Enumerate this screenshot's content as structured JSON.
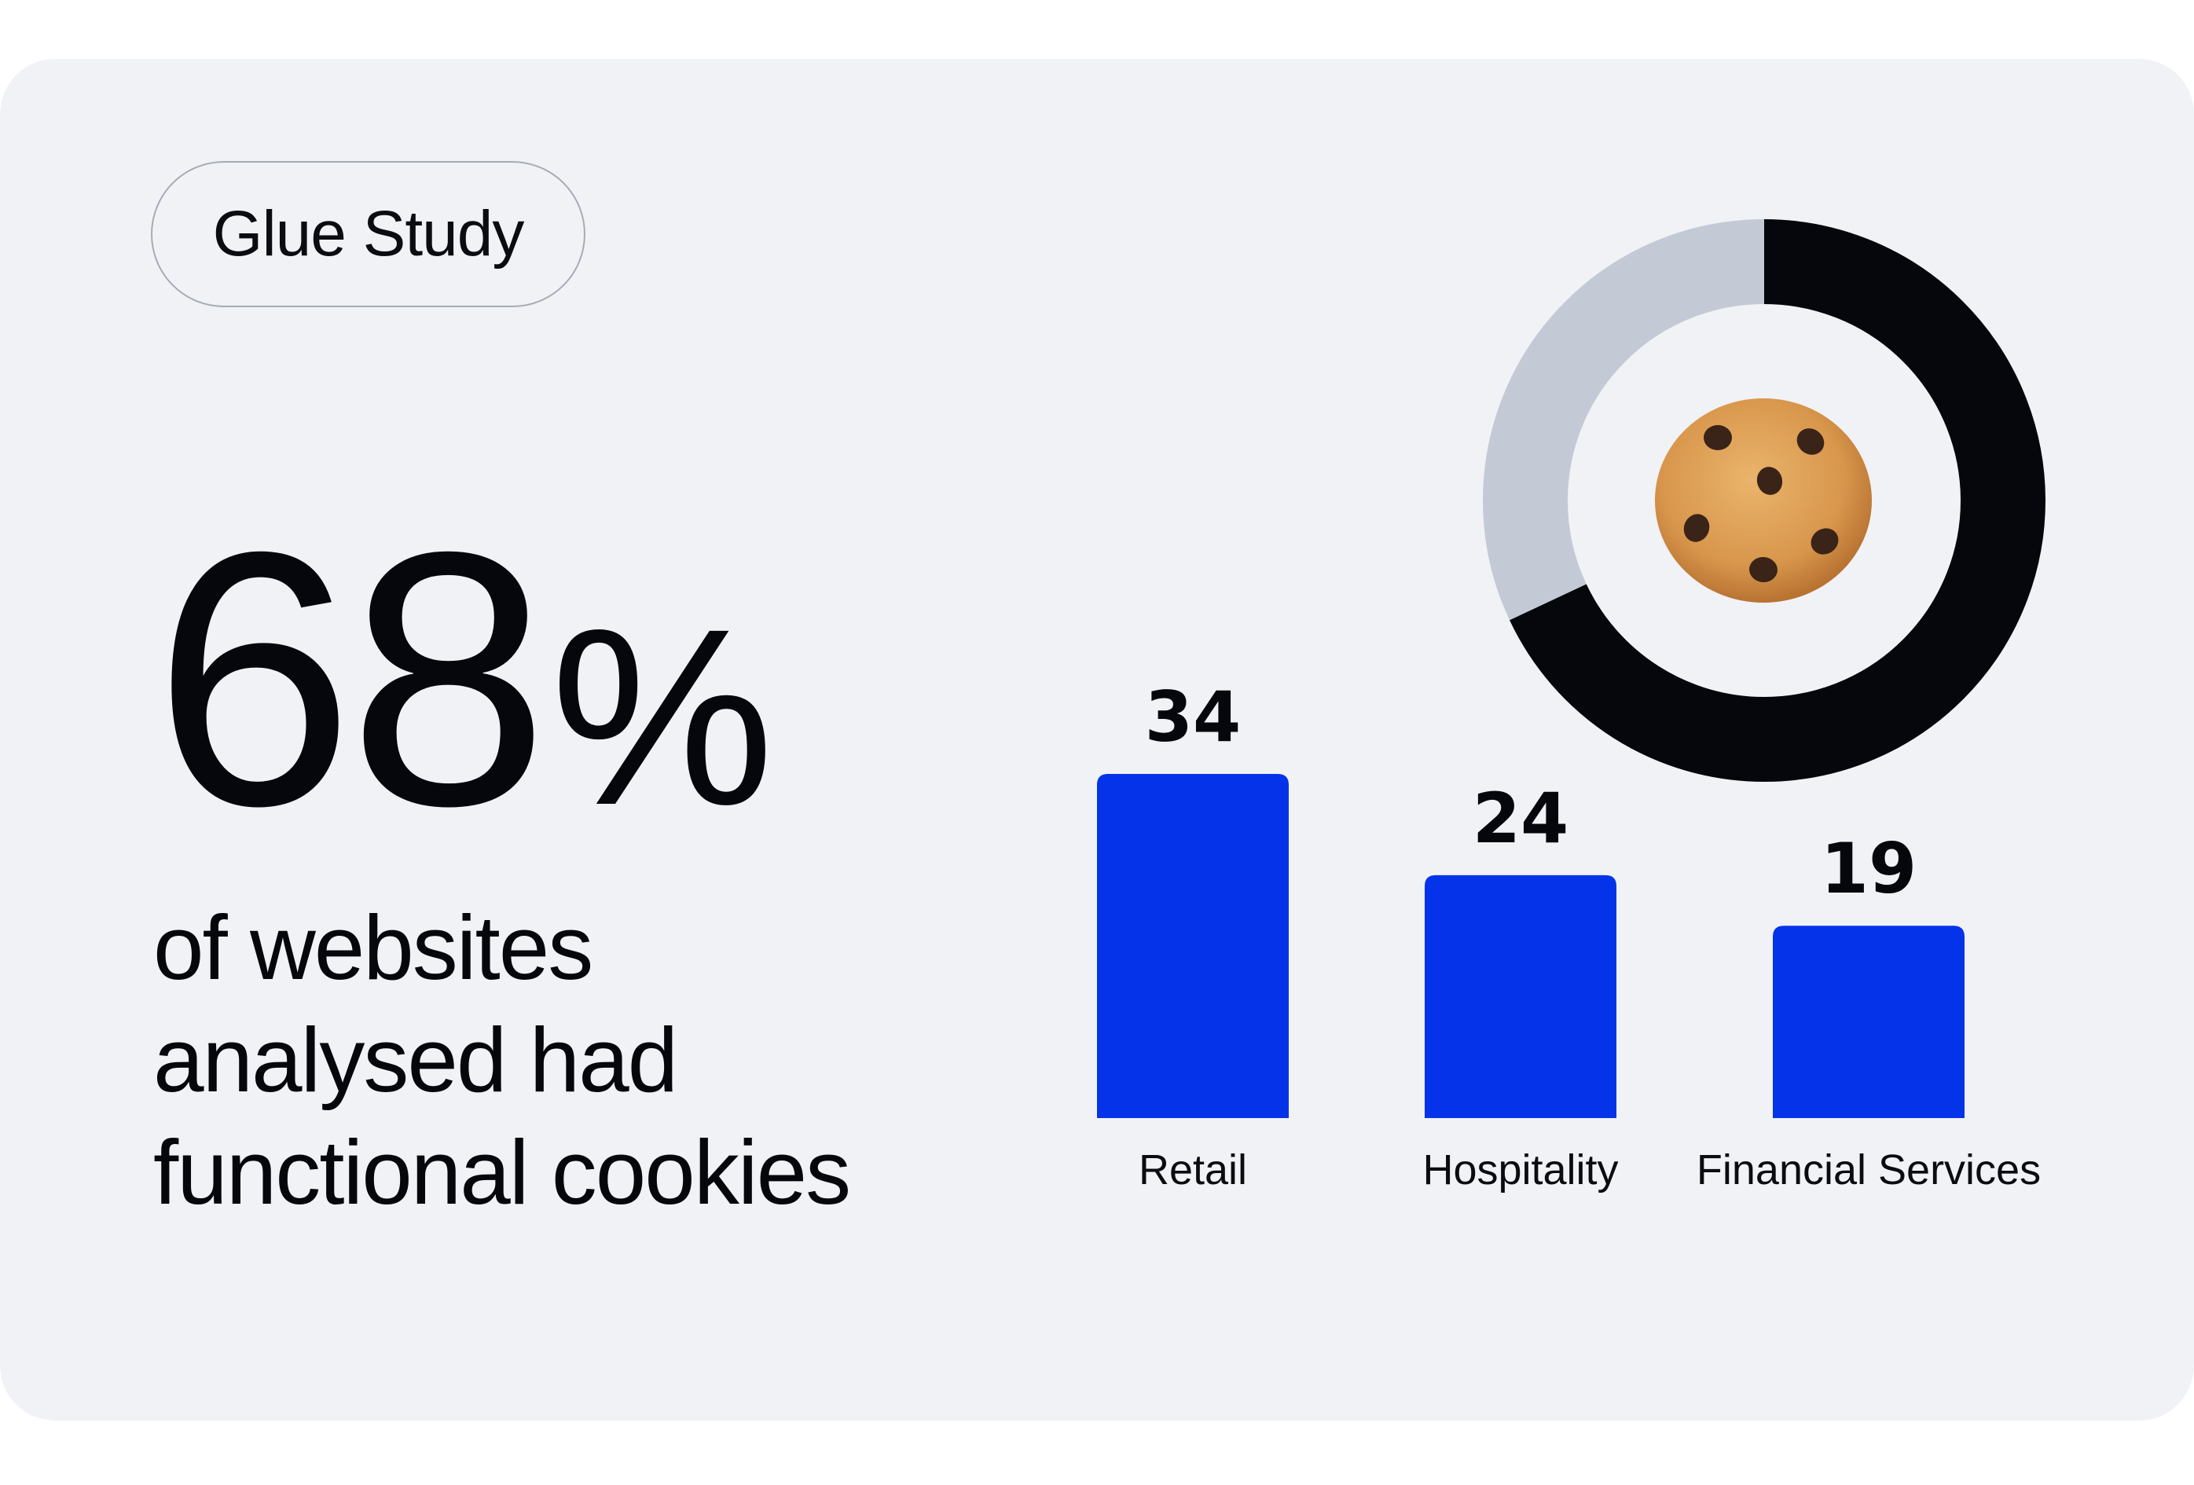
{
  "badge": {
    "label": "Glue Study"
  },
  "headline": {
    "value": "68",
    "unit": "%",
    "caption_lines": [
      "of websites",
      "analysed had",
      "functional cookies"
    ]
  },
  "icons": {
    "donut_center": "cookie-icon"
  },
  "colors": {
    "background": "#f1f2f6",
    "bar": "#0433ea",
    "donut_filled": "#05070c",
    "donut_remaining": "#c3cad6",
    "text": "#05070c"
  },
  "chart_data": [
    {
      "type": "pie",
      "variant": "donut",
      "values": [
        68,
        32
      ],
      "colors": [
        "#05070c",
        "#c3cad6"
      ],
      "start": "top",
      "direction": "clockwise",
      "title": "",
      "legend": "none"
    },
    {
      "type": "bar",
      "categories": [
        "Retail",
        "Hospitality",
        "Financial Services"
      ],
      "values": [
        34,
        24,
        19
      ],
      "data_labels": [
        "34",
        "24",
        "19"
      ],
      "color": "#0433ea",
      "title": "",
      "xlabel": "",
      "ylabel": "",
      "ylim": [
        0,
        34
      ],
      "grid": false,
      "axes_visible": false
    }
  ]
}
